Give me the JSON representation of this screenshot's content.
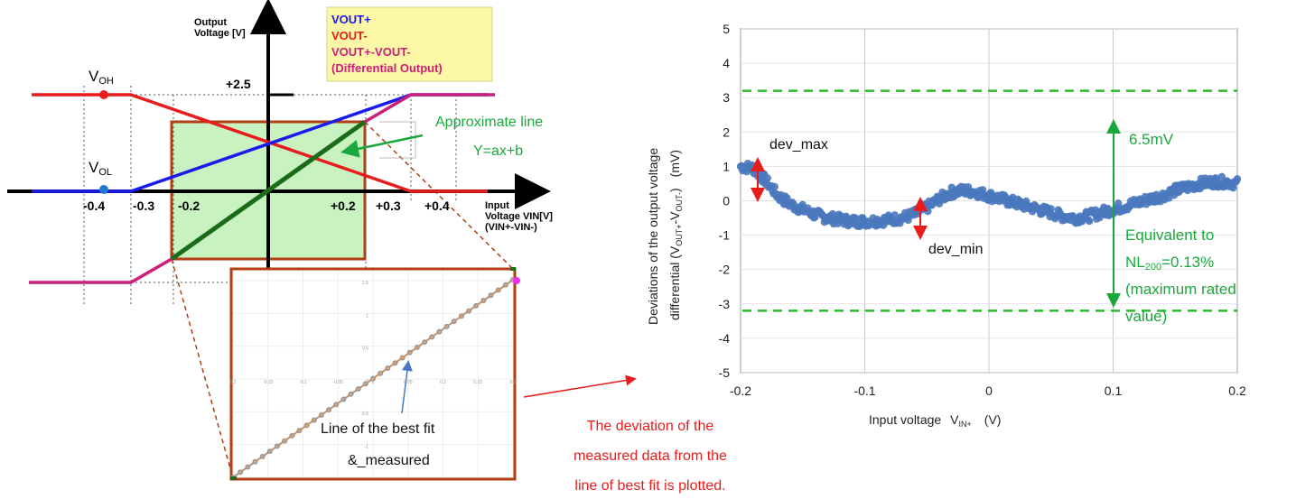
{
  "colors": {
    "vout_plus": "#1a1aee",
    "vout_minus": "#e81c1c",
    "differential": "#cc1e7a",
    "best_fit": "#1b6b1b",
    "box_fill": "#c8f2c0",
    "box_border": "#b33e12",
    "legend_bg": "#fbf7a6",
    "annotation_green": "#1aa83c",
    "annotation_red": "#e81c1c",
    "points": "#4a78be",
    "limit_line": "#2dbb2d"
  },
  "left_diagram": {
    "y_axis_label_1": "Output",
    "y_axis_label_2": "Voltage [V]",
    "x_axis_label_1": "Input",
    "x_axis_label_2": "Voltage VIN[V]",
    "x_axis_label_3": "(VIN+-VIN-)",
    "legend": {
      "vout_plus": "VOUT+",
      "vout_minus": "VOUT-",
      "diff_1": "VOUT+-VOUT-",
      "diff_2": "(Differential Output)"
    },
    "voh": {
      "main": "V",
      "sub": "OH"
    },
    "vol": {
      "main": "V",
      "sub": "OL"
    },
    "tick_plus25": "+2.5",
    "ticks": [
      "-0.4",
      "-0.3",
      "-0.2",
      "+0.2",
      "+0.3",
      "+0.4"
    ],
    "approx_line_1": "Approximate line",
    "approx_line_2": "Y=ax+b",
    "zoom_caption_1": "Line of the best fit",
    "zoom_caption_2": "&_measured",
    "zoom_axis": {
      "x_ticks": [
        "0.2",
        "-0.15",
        "-0.1",
        "-0.05",
        "0",
        "0.05",
        "0.1",
        "0.15",
        "0.2"
      ],
      "y_ticks": [
        "1.5",
        "1",
        "0.5",
        "0",
        "-0.5",
        "-1"
      ]
    },
    "deviation_note_1": "The deviation of the",
    "deviation_note_2": "measured data from the",
    "deviation_note_3": "line of best fit is plotted."
  },
  "chart_data": {
    "type": "scatter",
    "xlabel": "Input voltage",
    "xlabel_symbol": {
      "main": "V",
      "sub": "IN+"
    },
    "xlabel_unit": "(V)",
    "ylabel_line1": "Deviations of the output voltage",
    "ylabel_line2_prefix": "differential (V",
    "ylabel_sub1": "OUT+",
    "ylabel_mid": "-V",
    "ylabel_sub2": "OUT-",
    "ylabel_suffix": ")",
    "ylabel_unit": "(mV)",
    "xlim": [
      -0.2,
      0.2
    ],
    "ylim": [
      -5,
      5
    ],
    "x_ticks": [
      "-0.2",
      "-0.1",
      "0",
      "0.1",
      "0.2"
    ],
    "y_ticks": [
      "5",
      "4",
      "3",
      "2",
      "1",
      "0",
      "-1",
      "-2",
      "-3",
      "-4",
      "-5"
    ],
    "grid": true,
    "limit_lines": [
      3.2,
      -3.2
    ],
    "curve_points": [
      {
        "x": -0.2,
        "y": 1.0
      },
      {
        "x": -0.19,
        "y": 0.95
      },
      {
        "x": -0.18,
        "y": 0.6
      },
      {
        "x": -0.17,
        "y": 0.15
      },
      {
        "x": -0.16,
        "y": -0.1
      },
      {
        "x": -0.15,
        "y": -0.25
      },
      {
        "x": -0.14,
        "y": -0.4
      },
      {
        "x": -0.13,
        "y": -0.5
      },
      {
        "x": -0.12,
        "y": -0.55
      },
      {
        "x": -0.11,
        "y": -0.6
      },
      {
        "x": -0.1,
        "y": -0.6
      },
      {
        "x": -0.09,
        "y": -0.58
      },
      {
        "x": -0.08,
        "y": -0.55
      },
      {
        "x": -0.07,
        "y": -0.5
      },
      {
        "x": -0.06,
        "y": -0.4
      },
      {
        "x": -0.05,
        "y": -0.2
      },
      {
        "x": -0.04,
        "y": 0.05
      },
      {
        "x": -0.03,
        "y": 0.25
      },
      {
        "x": -0.02,
        "y": 0.3
      },
      {
        "x": -0.01,
        "y": 0.25
      },
      {
        "x": 0.0,
        "y": 0.15
      },
      {
        "x": 0.01,
        "y": 0.05
      },
      {
        "x": 0.02,
        "y": -0.05
      },
      {
        "x": 0.03,
        "y": -0.15
      },
      {
        "x": 0.04,
        "y": -0.25
      },
      {
        "x": 0.05,
        "y": -0.35
      },
      {
        "x": 0.06,
        "y": -0.45
      },
      {
        "x": 0.07,
        "y": -0.5
      },
      {
        "x": 0.08,
        "y": -0.45
      },
      {
        "x": 0.09,
        "y": -0.35
      },
      {
        "x": 0.1,
        "y": -0.25
      },
      {
        "x": 0.11,
        "y": -0.15
      },
      {
        "x": 0.12,
        "y": -0.05
      },
      {
        "x": 0.13,
        "y": 0.05
      },
      {
        "x": 0.14,
        "y": 0.15
      },
      {
        "x": 0.15,
        "y": 0.3
      },
      {
        "x": 0.16,
        "y": 0.4
      },
      {
        "x": 0.17,
        "y": 0.5
      },
      {
        "x": 0.18,
        "y": 0.55
      },
      {
        "x": 0.19,
        "y": 0.55
      },
      {
        "x": 0.2,
        "y": 0.5
      }
    ],
    "annotations": {
      "dev_max": "dev_max",
      "dev_min": "dev_min",
      "span": "6.5mV",
      "equiv_1": "Equivalent to",
      "equiv_2_main": "NL",
      "equiv_2_sub": "200",
      "equiv_2_rest": "=0.13%",
      "equiv_3": "(maximum rated",
      "equiv_4": "value)"
    }
  }
}
